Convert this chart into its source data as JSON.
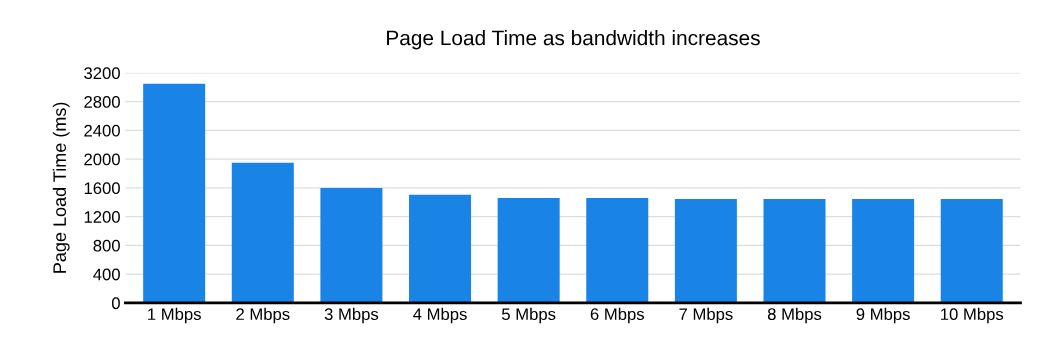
{
  "chart_data": {
    "type": "bar",
    "title": "Page Load Time as bandwidth increases",
    "ylabel": "Page Load Time (ms)",
    "categories": [
      "1 Mbps",
      "2 Mbps",
      "3 Mbps",
      "4 Mbps",
      "5 Mbps",
      "6 Mbps",
      "7 Mbps",
      "8 Mbps",
      "9 Mbps",
      "10 Mbps"
    ],
    "values": [
      3050,
      1950,
      1600,
      1505,
      1460,
      1460,
      1445,
      1445,
      1445,
      1445
    ],
    "color": "#1a84e6",
    "ylim": [
      0,
      3200
    ],
    "yticks": [
      0,
      400,
      800,
      1200,
      1600,
      2000,
      2400,
      2800,
      3200
    ],
    "grid": "y"
  }
}
